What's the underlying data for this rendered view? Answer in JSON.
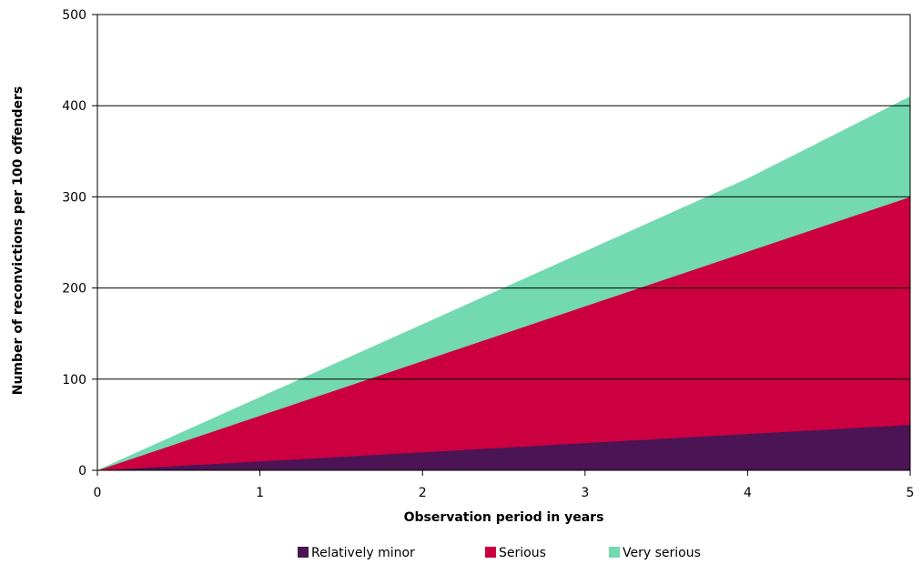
{
  "chart_data": {
    "type": "area",
    "stacked": true,
    "x": [
      0,
      1,
      2,
      3,
      4,
      5
    ],
    "series": [
      {
        "name": "Relatively minor",
        "color": "#4b1454",
        "values": [
          0,
          10,
          20,
          30,
          40,
          50
        ]
      },
      {
        "name": "Serious",
        "color": "#cc0040",
        "values": [
          0,
          50,
          100,
          150,
          200,
          250
        ]
      },
      {
        "name": "Very serious",
        "color": "#72d9b0",
        "values": [
          0,
          20,
          40,
          60,
          80,
          110
        ]
      }
    ],
    "xlabel": "Observation period in years",
    "ylabel": "Number of reconvictions per 100 offenders",
    "xlim": [
      0,
      5
    ],
    "ylim": [
      0,
      500
    ],
    "x_ticks": [
      "0",
      "1",
      "2",
      "3",
      "4",
      "5"
    ],
    "y_ticks": [
      "0",
      "100",
      "200",
      "300",
      "400",
      "500"
    ],
    "grid": "horizontal",
    "legend_position": "bottom"
  }
}
